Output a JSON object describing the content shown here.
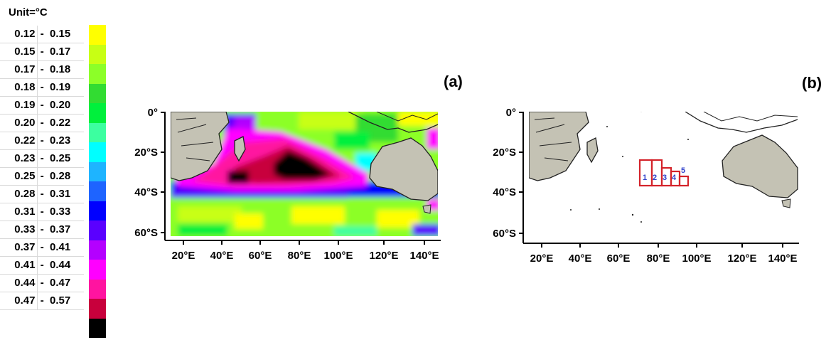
{
  "legend": {
    "unit": "Unit=°C",
    "ranges": [
      {
        "lo": "0.12",
        "hi": "0.15",
        "color": "#ffff00"
      },
      {
        "lo": "0.15",
        "hi": "0.17",
        "color": "#c8ff14"
      },
      {
        "lo": "0.17",
        "hi": "0.18",
        "color": "#8cff28"
      },
      {
        "lo": "0.18",
        "hi": "0.19",
        "color": "#32dc32"
      },
      {
        "lo": "0.19",
        "hi": "0.20",
        "color": "#00f03c"
      },
      {
        "lo": "0.20",
        "hi": "0.22",
        "color": "#3cffa0"
      },
      {
        "lo": "0.22",
        "hi": "0.23",
        "color": "#00ffff"
      },
      {
        "lo": "0.23",
        "hi": "0.25",
        "color": "#1eb4ff"
      },
      {
        "lo": "0.25",
        "hi": "0.28",
        "color": "#1e64ff"
      },
      {
        "lo": "0.28",
        "hi": "0.31",
        "color": "#0000ff"
      },
      {
        "lo": "0.31",
        "hi": "0.33",
        "color": "#5a00ff"
      },
      {
        "lo": "0.33",
        "hi": "0.37",
        "color": "#b400ff"
      },
      {
        "lo": "0.37",
        "hi": "0.41",
        "color": "#ff00ff"
      },
      {
        "lo": "0.41",
        "hi": "0.44",
        "color": "#ff14a0"
      },
      {
        "lo": "0.44",
        "hi": "0.47",
        "color": "#c8003c"
      },
      {
        "lo": "0.47",
        "hi": "0.57",
        "color": "#000000"
      }
    ]
  },
  "axes": {
    "lat_labels": [
      "0°",
      "20°S",
      "40°S",
      "60°S"
    ],
    "lon_labels": [
      "20°E",
      "40°E",
      "60°E",
      "80°E",
      "100°E",
      "120°E",
      "140°E"
    ]
  },
  "panel_a": {
    "tag": "(a)"
  },
  "panel_b": {
    "tag": "(b)",
    "boxes": [
      {
        "label": "1"
      },
      {
        "label": "2"
      },
      {
        "label": "3"
      },
      {
        "label": "4"
      },
      {
        "label": "5"
      }
    ]
  },
  "colors": {
    "land": "#c4c2b4",
    "coast": "#222222",
    "box": "#d4232a",
    "box_label": "#3344cc"
  }
}
